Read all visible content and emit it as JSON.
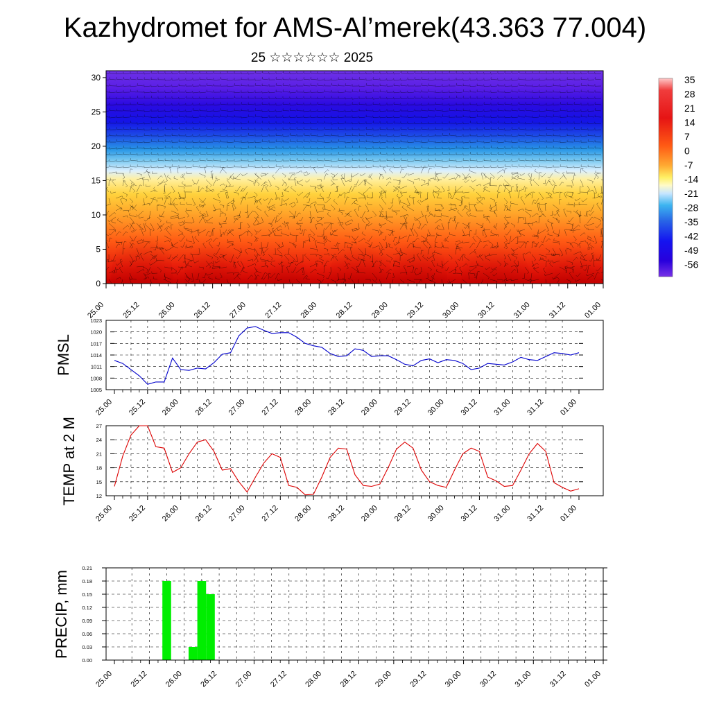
{
  "header": {
    "title": "Kazhydromet for AMS-Al’merek(43.363 77.004)",
    "subtitle": "25 ☆☆☆☆☆☆ 2025"
  },
  "time_labels": [
    "25.00",
    "25.12",
    "26.00",
    "26.12",
    "27.00",
    "27.12",
    "28.00",
    "28.12",
    "29.00",
    "29.12",
    "30.00",
    "30.12",
    "31.00",
    "31.12",
    "01.00"
  ],
  "colors": {
    "pmsl_line": "#0000cc",
    "temp_line": "#dd0000",
    "precip_bar": "#00ee00"
  },
  "chart_data": [
    {
      "type": "heatmap",
      "name": "cross-section",
      "ylim": [
        0,
        31
      ],
      "yticks": [
        0,
        5,
        10,
        15,
        20,
        25,
        30
      ],
      "colorbar_labels": [
        "35",
        "28",
        "21",
        "14",
        "7",
        "0",
        "-7",
        "-14",
        "-21",
        "-28",
        "-35",
        "-42",
        "-49",
        "-56"
      ]
    },
    {
      "type": "line",
      "ylabel": "PMSL",
      "ylim": [
        1005,
        1023
      ],
      "yticks": [
        1005,
        1008,
        1011,
        1014,
        1017,
        1020,
        1023
      ],
      "x_hours": [
        0,
        3,
        6,
        9,
        12,
        15,
        18,
        21,
        24,
        27,
        30,
        33,
        36,
        39,
        42,
        45,
        48,
        51,
        54,
        57,
        60,
        63,
        66,
        69,
        72,
        75,
        78,
        81,
        84,
        87,
        90,
        93,
        96,
        99,
        102,
        105,
        108,
        111,
        114,
        117,
        120,
        123,
        126,
        129,
        132,
        135,
        138,
        141,
        144,
        147,
        150,
        153,
        156,
        159,
        162,
        165,
        168
      ],
      "values": [
        1012.6,
        1011.8,
        1010.2,
        1008.6,
        1006.4,
        1007.0,
        1007.0,
        1013.2,
        1010.2,
        1010.0,
        1010.6,
        1010.4,
        1012.0,
        1014.2,
        1014.6,
        1019.0,
        1021.0,
        1021.4,
        1020.4,
        1019.6,
        1019.8,
        1019.8,
        1018.6,
        1017.0,
        1016.4,
        1016.0,
        1014.4,
        1013.6,
        1013.8,
        1015.6,
        1015.2,
        1013.6,
        1013.8,
        1013.8,
        1012.8,
        1011.6,
        1011.2,
        1012.6,
        1013.0,
        1012.0,
        1012.8,
        1012.6,
        1011.8,
        1010.2,
        1010.6,
        1011.8,
        1011.6,
        1011.4,
        1012.2,
        1013.4,
        1012.8,
        1012.6,
        1013.6,
        1014.6,
        1014.4,
        1014.0,
        1014.6
      ]
    },
    {
      "type": "line",
      "ylabel": "TEMP at 2 M",
      "ylim": [
        12,
        27
      ],
      "yticks": [
        12,
        15,
        18,
        21,
        24,
        27
      ],
      "x_hours": [
        0,
        3,
        6,
        9,
        12,
        15,
        18,
        21,
        24,
        27,
        30,
        33,
        36,
        39,
        42,
        45,
        48,
        51,
        54,
        57,
        60,
        63,
        66,
        69,
        72,
        75,
        78,
        81,
        84,
        87,
        90,
        93,
        96,
        99,
        102,
        105,
        108,
        111,
        114,
        117,
        120,
        123,
        126,
        129,
        132,
        135,
        138,
        141,
        144,
        147,
        150,
        153,
        156,
        159,
        162,
        165,
        168
      ],
      "values": [
        14.0,
        20.5,
        25.0,
        27.0,
        27.0,
        22.5,
        22.2,
        17.0,
        18.0,
        21.0,
        23.5,
        24.0,
        21.5,
        17.5,
        17.8,
        15.0,
        12.8,
        16.0,
        19.0,
        21.0,
        20.2,
        14.2,
        13.8,
        12.2,
        12.3,
        16.0,
        20.2,
        22.2,
        22.0,
        16.5,
        14.2,
        14.0,
        14.5,
        18.0,
        22.0,
        23.5,
        22.2,
        17.5,
        15.0,
        14.2,
        13.8,
        17.5,
        21.0,
        22.2,
        21.5,
        16.0,
        15.2,
        14.0,
        14.2,
        17.5,
        21.0,
        23.2,
        21.5,
        14.8,
        13.8,
        13.0,
        13.5
      ]
    },
    {
      "type": "bar",
      "ylabel": "PRECIP, mm",
      "ylim": [
        0,
        0.21
      ],
      "ytick_labels": [
        "0.00",
        "0.03",
        "0.06",
        "0.09",
        "0.12",
        "0.15",
        "0.18",
        "0.21"
      ],
      "x_hours": [
        18,
        27,
        30,
        33
      ],
      "values": [
        0.18,
        0.03,
        0.18,
        0.15
      ]
    }
  ]
}
